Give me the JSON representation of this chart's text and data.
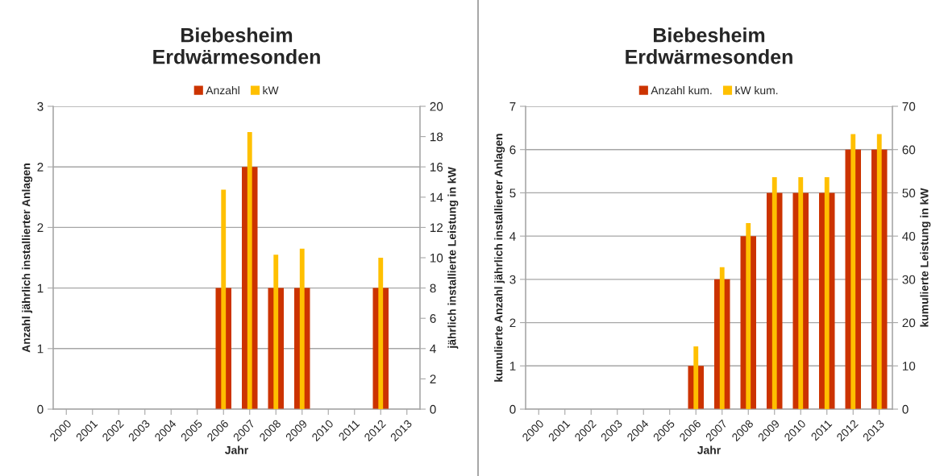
{
  "chart_data": [
    {
      "type": "bar",
      "title": "Biebesheim\nErdwärmesonden",
      "xlabel": "Jahr",
      "ylabel": "Anzahl jährlich installierter Anlagen",
      "y2label": "jährlich installierte Leistung in kW",
      "categories": [
        "2000",
        "2001",
        "2002",
        "2003",
        "2004",
        "2005",
        "2006",
        "2007",
        "2008",
        "2009",
        "2010",
        "2011",
        "2012",
        "2013"
      ],
      "series": [
        {
          "name": "Anzahl",
          "color": "#cc3300",
          "values": [
            null,
            null,
            null,
            null,
            null,
            null,
            1,
            2,
            1,
            1,
            null,
            null,
            1,
            null
          ]
        },
        {
          "name": "kW",
          "color": "#ffc000",
          "axis": "y2",
          "values": [
            null,
            null,
            null,
            null,
            null,
            null,
            14.5,
            18.3,
            10.2,
            10.6,
            null,
            null,
            10.0,
            null
          ]
        }
      ],
      "ylim": [
        0,
        2.5
      ],
      "yticks": [
        0,
        {
          "value": 0.5,
          "label": "1"
        },
        1,
        {
          "value": 1.5,
          "label": "2"
        },
        2,
        {
          "value": 2.5,
          "label": "3"
        }
      ],
      "y2lim": [
        0,
        20
      ],
      "y2ticks": [
        0,
        2,
        4,
        6,
        8,
        10,
        12,
        14,
        16,
        18,
        20
      ],
      "grid": "y",
      "legend": "top"
    },
    {
      "type": "bar",
      "title": "Biebesheim\nErdwärmesonden",
      "xlabel": "Jahr",
      "ylabel": "kumulierte Anzahl jährlich installierter Anlagen",
      "y2label": "kumulierte Leistung in kW",
      "categories": [
        "2000",
        "2001",
        "2002",
        "2003",
        "2004",
        "2005",
        "2006",
        "2007",
        "2008",
        "2009",
        "2010",
        "2011",
        "2012",
        "2013"
      ],
      "series": [
        {
          "name": "Anzahl kum.",
          "color": "#cc3300",
          "values": [
            null,
            null,
            null,
            null,
            null,
            null,
            1,
            3,
            4,
            5,
            5,
            5,
            6,
            6
          ]
        },
        {
          "name": "kW kum.",
          "color": "#ffc000",
          "axis": "y2",
          "values": [
            null,
            null,
            null,
            null,
            null,
            null,
            14.5,
            32.8,
            43.0,
            53.6,
            53.6,
            53.6,
            63.6,
            63.6
          ]
        }
      ],
      "ylim": [
        0,
        7
      ],
      "yticks": [
        0,
        1,
        2,
        3,
        4,
        5,
        6,
        7
      ],
      "y2lim": [
        0,
        70
      ],
      "y2ticks": [
        0,
        10,
        20,
        30,
        40,
        50,
        60,
        70
      ],
      "grid": "y",
      "legend": "top"
    }
  ]
}
